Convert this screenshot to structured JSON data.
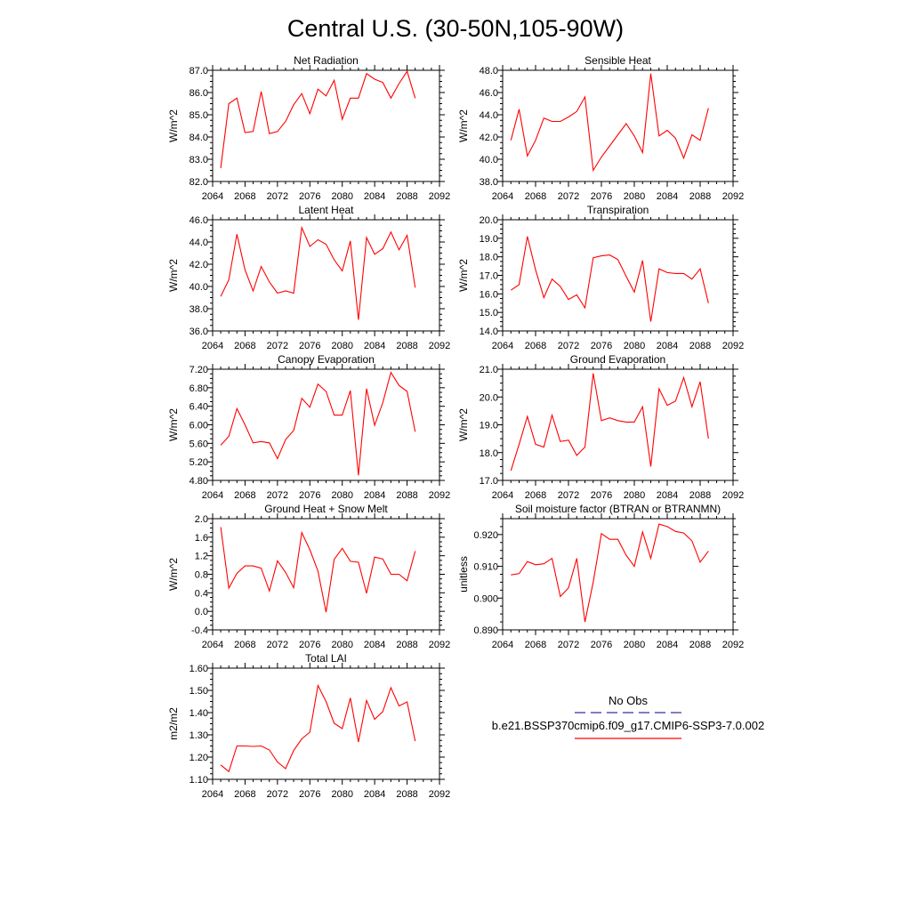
{
  "figure": {
    "title": "Central U.S. (30-50N,105-90W)"
  },
  "colors": {
    "series": "#ff0000",
    "obs": "#3030a0",
    "axes": "#000000",
    "background": "#ffffff"
  },
  "legend": {
    "obs_label": "No Obs",
    "case_label": "b.e21.BSSP370cmip6.f09_g17.CMIP6-SSP3-7.0.002",
    "placement": "center-right"
  },
  "chart_data": [
    {
      "type": "line",
      "title": "Net Radiation",
      "ylabel": "W/m^2",
      "xlim": [
        2064,
        2092
      ],
      "xticks": [
        "2064",
        "2068",
        "2072",
        "2076",
        "2080",
        "2084",
        "2088",
        "2092"
      ],
      "ylim": [
        82.0,
        87.0
      ],
      "yticks": [
        "82.0",
        "83.0",
        "84.0",
        "85.0",
        "86.0",
        "87.0"
      ],
      "x": [
        2065,
        2066,
        2067,
        2068,
        2069,
        2070,
        2071,
        2072,
        2073,
        2074,
        2075,
        2076,
        2077,
        2078,
        2079,
        2080,
        2081,
        2082,
        2083,
        2084,
        2085,
        2086,
        2087,
        2088,
        2089
      ],
      "series": [
        {
          "name": "b.e21.BSSP370cmip6.f09_g17.CMIP6-SSP3-7.0.002",
          "values": [
            82.6,
            85.5,
            85.75,
            84.2,
            84.25,
            86.05,
            84.15,
            84.25,
            84.7,
            85.45,
            85.95,
            85.05,
            86.15,
            85.85,
            86.55,
            84.8,
            85.75,
            85.75,
            86.85,
            86.6,
            86.45,
            85.75,
            86.4,
            86.95,
            85.75
          ]
        }
      ]
    },
    {
      "type": "line",
      "title": "Sensible Heat",
      "ylabel": "W/m^2",
      "xlim": [
        2064,
        2092
      ],
      "xticks": [
        "2064",
        "2068",
        "2072",
        "2076",
        "2080",
        "2084",
        "2088",
        "2092"
      ],
      "ylim": [
        38.0,
        48.0
      ],
      "yticks": [
        "38.0",
        "40.0",
        "42.0",
        "44.0",
        "46.0",
        "48.0"
      ],
      "x": [
        2065,
        2066,
        2067,
        2068,
        2069,
        2070,
        2071,
        2072,
        2073,
        2074,
        2075,
        2076,
        2077,
        2078,
        2079,
        2080,
        2081,
        2082,
        2083,
        2084,
        2085,
        2086,
        2087,
        2088,
        2089
      ],
      "series": [
        {
          "name": "b.e21.BSSP370cmip6.f09_g17.CMIP6-SSP3-7.0.002",
          "values": [
            41.7,
            44.5,
            40.3,
            41.7,
            43.7,
            43.4,
            43.4,
            43.8,
            44.3,
            45.6,
            39.0,
            40.2,
            41.2,
            42.2,
            43.2,
            42.1,
            40.6,
            47.7,
            42.1,
            42.6,
            41.9,
            40.1,
            42.2,
            41.7,
            44.6
          ]
        }
      ]
    },
    {
      "type": "line",
      "title": "Latent Heat",
      "ylabel": "W/m^2",
      "xlim": [
        2064,
        2092
      ],
      "xticks": [
        "2064",
        "2068",
        "2072",
        "2076",
        "2080",
        "2084",
        "2088",
        "2092"
      ],
      "ylim": [
        36.0,
        46.0
      ],
      "yticks": [
        "36.0",
        "38.0",
        "40.0",
        "42.0",
        "44.0",
        "46.0"
      ],
      "x": [
        2065,
        2066,
        2067,
        2068,
        2069,
        2070,
        2071,
        2072,
        2073,
        2074,
        2075,
        2076,
        2077,
        2078,
        2079,
        2080,
        2081,
        2082,
        2083,
        2084,
        2085,
        2086,
        2087,
        2088,
        2089
      ],
      "series": [
        {
          "name": "b.e21.BSSP370cmip6.f09_g17.CMIP6-SSP3-7.0.002",
          "values": [
            39.1,
            40.6,
            44.7,
            41.5,
            39.6,
            41.8,
            40.4,
            39.4,
            39.6,
            39.4,
            45.3,
            43.6,
            44.2,
            43.8,
            42.4,
            41.4,
            44.1,
            37.0,
            44.4,
            42.9,
            43.4,
            44.9,
            43.3,
            44.6,
            39.9
          ]
        }
      ]
    },
    {
      "type": "line",
      "title": "Transpiration",
      "ylabel": "W/m^2",
      "xlim": [
        2064,
        2092
      ],
      "xticks": [
        "2064",
        "2068",
        "2072",
        "2076",
        "2080",
        "2084",
        "2088",
        "2092"
      ],
      "ylim": [
        14.0,
        20.0
      ],
      "yticks": [
        "14.0",
        "15.0",
        "16.0",
        "17.0",
        "18.0",
        "19.0",
        "20.0"
      ],
      "x": [
        2065,
        2066,
        2067,
        2068,
        2069,
        2070,
        2071,
        2072,
        2073,
        2074,
        2075,
        2076,
        2077,
        2078,
        2079,
        2080,
        2081,
        2082,
        2083,
        2084,
        2085,
        2086,
        2087,
        2088,
        2089
      ],
      "series": [
        {
          "name": "b.e21.BSSP370cmip6.f09_g17.CMIP6-SSP3-7.0.002",
          "values": [
            16.2,
            16.5,
            19.1,
            17.3,
            15.8,
            16.8,
            16.4,
            15.7,
            15.95,
            15.25,
            17.95,
            18.05,
            18.1,
            17.85,
            16.95,
            16.1,
            17.8,
            14.5,
            17.35,
            17.15,
            17.1,
            17.1,
            16.8,
            17.35,
            15.5
          ]
        }
      ]
    },
    {
      "type": "line",
      "title": "Canopy Evaporation",
      "ylabel": "W/m^2",
      "xlim": [
        2064,
        2092
      ],
      "xticks": [
        "2064",
        "2068",
        "2072",
        "2076",
        "2080",
        "2084",
        "2088",
        "2092"
      ],
      "ylim": [
        4.8,
        7.2
      ],
      "yticks": [
        "4.80",
        "5.20",
        "5.60",
        "6.00",
        "6.40",
        "6.80",
        "7.20"
      ],
      "x": [
        2065,
        2066,
        2067,
        2068,
        2069,
        2070,
        2071,
        2072,
        2073,
        2074,
        2075,
        2076,
        2077,
        2078,
        2079,
        2080,
        2081,
        2082,
        2083,
        2084,
        2085,
        2086,
        2087,
        2088,
        2089
      ],
      "series": [
        {
          "name": "b.e21.BSSP370cmip6.f09_g17.CMIP6-SSP3-7.0.002",
          "values": [
            5.56,
            5.75,
            6.35,
            6.0,
            5.61,
            5.64,
            5.61,
            5.27,
            5.68,
            5.88,
            6.57,
            6.38,
            6.88,
            6.72,
            6.21,
            6.21,
            6.74,
            4.91,
            6.78,
            5.99,
            6.48,
            7.13,
            6.85,
            6.72,
            5.85
          ]
        }
      ]
    },
    {
      "type": "line",
      "title": "Ground Evaporation",
      "ylabel": "W/m^2",
      "xlim": [
        2064,
        2092
      ],
      "xticks": [
        "2064",
        "2068",
        "2072",
        "2076",
        "2080",
        "2084",
        "2088",
        "2092"
      ],
      "ylim": [
        17.0,
        21.0
      ],
      "yticks": [
        "17.0",
        "18.0",
        "19.0",
        "20.0",
        "21.0"
      ],
      "x": [
        2065,
        2066,
        2067,
        2068,
        2069,
        2070,
        2071,
        2072,
        2073,
        2074,
        2075,
        2076,
        2077,
        2078,
        2079,
        2080,
        2081,
        2082,
        2083,
        2084,
        2085,
        2086,
        2087,
        2088,
        2089
      ],
      "series": [
        {
          "name": "b.e21.BSSP370cmip6.f09_g17.CMIP6-SSP3-7.0.002",
          "values": [
            17.35,
            18.3,
            19.3,
            18.3,
            18.2,
            19.35,
            18.4,
            18.45,
            17.9,
            18.2,
            20.85,
            19.15,
            19.25,
            19.15,
            19.1,
            19.1,
            19.65,
            17.5,
            20.3,
            19.7,
            19.85,
            20.7,
            19.65,
            20.55,
            18.5
          ]
        }
      ]
    },
    {
      "type": "line",
      "title": "Ground Heat + Snow Melt",
      "ylabel": "W/m^2",
      "xlim": [
        2064,
        2092
      ],
      "xticks": [
        "2064",
        "2068",
        "2072",
        "2076",
        "2080",
        "2084",
        "2088",
        "2092"
      ],
      "ylim": [
        -0.4,
        2.0
      ],
      "yticks": [
        "-0.4",
        "0.0",
        "0.4",
        "0.8",
        "1.2",
        "1.6",
        "2.0"
      ],
      "x": [
        2065,
        2066,
        2067,
        2068,
        2069,
        2070,
        2071,
        2072,
        2073,
        2074,
        2075,
        2076,
        2077,
        2078,
        2079,
        2080,
        2081,
        2082,
        2083,
        2084,
        2085,
        2086,
        2087,
        2088,
        2089
      ],
      "series": [
        {
          "name": "b.e21.BSSP370cmip6.f09_g17.CMIP6-SSP3-7.0.002",
          "values": [
            1.82,
            0.5,
            0.82,
            0.98,
            0.98,
            0.93,
            0.44,
            1.09,
            0.84,
            0.51,
            1.7,
            1.33,
            0.87,
            -0.02,
            1.12,
            1.36,
            1.08,
            1.06,
            0.39,
            1.17,
            1.13,
            0.8,
            0.8,
            0.66,
            1.3
          ]
        }
      ]
    },
    {
      "type": "line",
      "title": "Soil moisture factor (BTRAN or BTRANMN)",
      "ylabel": "unitless",
      "xlim": [
        2064,
        2092
      ],
      "xticks": [
        "2064",
        "2068",
        "2072",
        "2076",
        "2080",
        "2084",
        "2088",
        "2092"
      ],
      "ylim": [
        0.89,
        0.925
      ],
      "yticks": [
        "0.890",
        "0.900",
        "0.910",
        "0.920"
      ],
      "x": [
        2065,
        2066,
        2067,
        2068,
        2069,
        2070,
        2071,
        2072,
        2073,
        2074,
        2075,
        2076,
        2077,
        2078,
        2079,
        2080,
        2081,
        2082,
        2083,
        2084,
        2085,
        2086,
        2087,
        2088,
        2089
      ],
      "series": [
        {
          "name": "b.e21.BSSP370cmip6.f09_g17.CMIP6-SSP3-7.0.002",
          "values": [
            0.9073,
            0.9077,
            0.9115,
            0.9105,
            0.9108,
            0.9125,
            0.9005,
            0.9032,
            0.9125,
            0.8925,
            0.905,
            0.9203,
            0.9185,
            0.9185,
            0.9135,
            0.91,
            0.9208,
            0.9125,
            0.9233,
            0.9225,
            0.921,
            0.9205,
            0.918,
            0.9113,
            0.9148
          ]
        }
      ]
    },
    {
      "type": "line",
      "title": "Total LAI",
      "ylabel": "m2/m2",
      "xlim": [
        2064,
        2092
      ],
      "xticks": [
        "2064",
        "2068",
        "2072",
        "2076",
        "2080",
        "2084",
        "2088",
        "2092"
      ],
      "ylim": [
        1.1,
        1.6
      ],
      "yticks": [
        "1.10",
        "1.20",
        "1.30",
        "1.40",
        "1.50",
        "1.60"
      ],
      "x": [
        2065,
        2066,
        2067,
        2068,
        2069,
        2070,
        2071,
        2072,
        2073,
        2074,
        2075,
        2076,
        2077,
        2078,
        2079,
        2080,
        2081,
        2082,
        2083,
        2084,
        2085,
        2086,
        2087,
        2088,
        2089
      ],
      "series": [
        {
          "name": "b.e21.BSSP370cmip6.f09_g17.CMIP6-SSP3-7.0.002",
          "values": [
            1.165,
            1.135,
            1.25,
            1.25,
            1.248,
            1.25,
            1.232,
            1.178,
            1.148,
            1.23,
            1.282,
            1.312,
            1.522,
            1.45,
            1.352,
            1.328,
            1.466,
            1.268,
            1.455,
            1.37,
            1.405,
            1.512,
            1.43,
            1.448,
            1.272
          ]
        }
      ]
    }
  ]
}
